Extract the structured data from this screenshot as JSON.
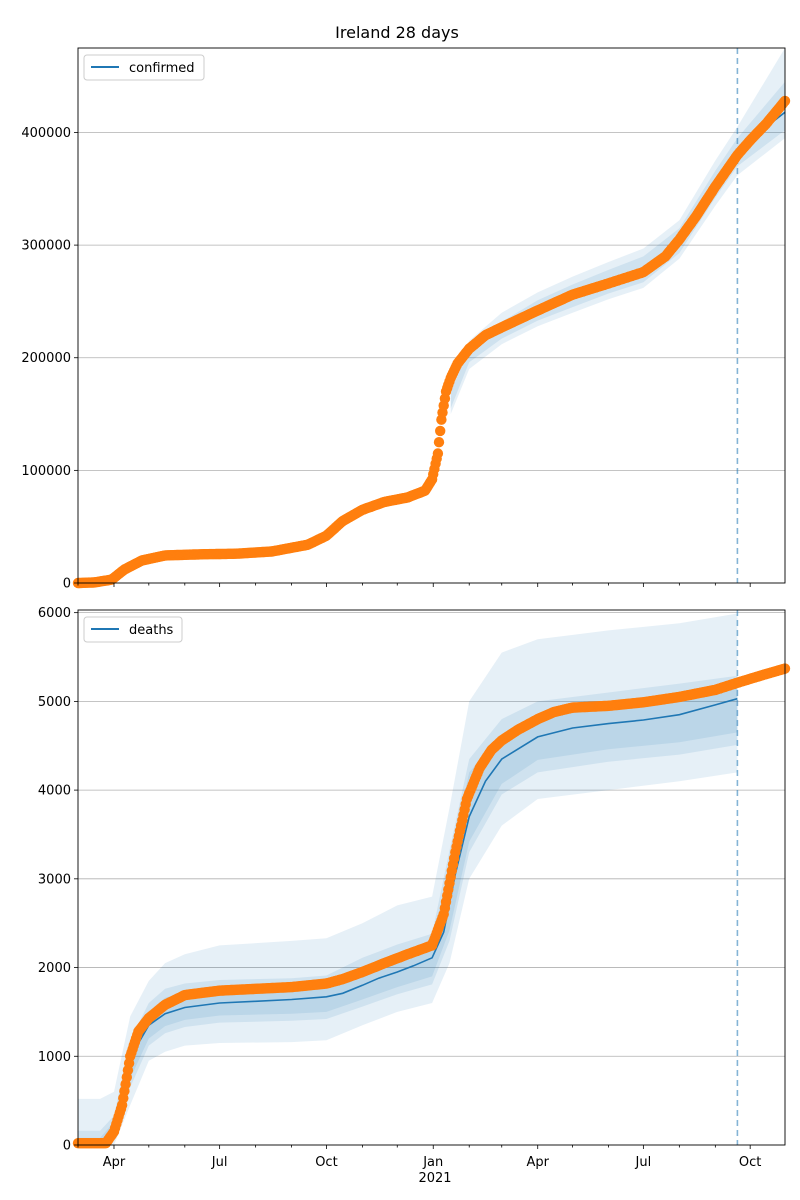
{
  "chart_data": [
    {
      "type": "line",
      "title": "Ireland 28 days",
      "legend": {
        "label": "confirmed",
        "placement": "top-left"
      },
      "xlim": [
        "2020-03-01",
        "2021-10-31"
      ],
      "ylim": [
        0,
        475000
      ],
      "yticks": [
        0,
        100000,
        200000,
        300000,
        400000
      ],
      "ytick_labels": [
        "0",
        "100000",
        "200000",
        "300000",
        "400000"
      ],
      "xticks": [],
      "grid": "y",
      "forecast_date": "2021-09-20",
      "colors": {
        "model": "#1f77b4",
        "observed": "#ff7f0e",
        "band": "#1f77b4"
      },
      "model_series": {
        "x": [
          "2021-09-20",
          "2021-10-31"
        ],
        "y": [
          385000,
          418000
        ]
      },
      "bands": [
        {
          "x": [
            "2021-01-16",
            "2021-02-01",
            "2021-03-01",
            "2021-04-01",
            "2021-05-01",
            "2021-06-01",
            "2021-07-01",
            "2021-08-01",
            "2021-09-01",
            "2021-09-20",
            "2021-10-31"
          ],
          "lower": [
            150000,
            190000,
            212000,
            228000,
            240000,
            252000,
            262000,
            288000,
            335000,
            362000,
            395000
          ],
          "upper": [
            175000,
            215000,
            240000,
            258000,
            272000,
            285000,
            297000,
            322000,
            375000,
            405000,
            475000
          ]
        },
        {
          "x": [
            "2021-01-16",
            "2021-02-01",
            "2021-03-01",
            "2021-04-01",
            "2021-05-01",
            "2021-06-01",
            "2021-07-01",
            "2021-08-01",
            "2021-09-01",
            "2021-09-20",
            "2021-10-31"
          ],
          "lower": [
            155000,
            196000,
            217000,
            233000,
            245000,
            257000,
            267000,
            293000,
            342000,
            370000,
            402000
          ],
          "upper": [
            170000,
            208000,
            232000,
            251000,
            265000,
            278000,
            290000,
            315000,
            366000,
            395000,
            445000
          ]
        }
      ],
      "observed": {
        "x": [
          "2020-03-01",
          "2020-03-15",
          "2020-03-30",
          "2020-04-10",
          "2020-04-25",
          "2020-05-15",
          "2020-06-15",
          "2020-07-15",
          "2020-08-15",
          "2020-09-15",
          "2020-10-01",
          "2020-10-15",
          "2020-11-01",
          "2020-11-20",
          "2020-12-10",
          "2020-12-25",
          "2020-12-31",
          "2021-01-05",
          "2021-01-08",
          "2021-01-12",
          "2021-01-16",
          "2021-01-22",
          "2021-02-01",
          "2021-02-15",
          "2021-03-01",
          "2021-04-01",
          "2021-05-01",
          "2021-06-01",
          "2021-07-01",
          "2021-07-20",
          "2021-08-01",
          "2021-08-15",
          "2021-09-01",
          "2021-09-20",
          "2021-10-01",
          "2021-10-15",
          "2021-10-31"
        ],
        "y": [
          0,
          500,
          3000,
          12000,
          20000,
          24500,
          25500,
          26000,
          28000,
          34000,
          42000,
          55000,
          65000,
          72000,
          76000,
          82000,
          92000,
          115000,
          145000,
          170000,
          182000,
          195000,
          208000,
          220000,
          227000,
          242000,
          256000,
          266000,
          276000,
          290000,
          305000,
          325000,
          352000,
          380000,
          393000,
          408000,
          428000
        ]
      }
    },
    {
      "type": "line",
      "title": "",
      "legend": {
        "label": "deaths",
        "placement": "top-left"
      },
      "xlim": [
        "2020-03-01",
        "2021-10-31"
      ],
      "ylim": [
        0,
        6030
      ],
      "yticks": [
        0,
        1000,
        2000,
        3000,
        4000,
        5000,
        6000
      ],
      "ytick_labels": [
        "0",
        "1000",
        "2000",
        "3000",
        "4000",
        "5000",
        "6000"
      ],
      "xticks": [
        {
          "date": "2020-04-01",
          "label": "Apr"
        },
        {
          "date": "2020-07-01",
          "label": "Jul"
        },
        {
          "date": "2020-10-01",
          "label": "Oct"
        },
        {
          "date": "2021-01-01",
          "label": "Jan"
        },
        {
          "date": "2021-04-01",
          "label": "Apr"
        },
        {
          "date": "2021-07-01",
          "label": "Jul"
        },
        {
          "date": "2021-10-01",
          "label": "Oct"
        }
      ],
      "xlabel_year": "2021",
      "grid": "y",
      "forecast_date": "2021-09-20",
      "colors": {
        "model": "#1f77b4",
        "observed": "#ff7f0e",
        "band": "#1f77b4"
      },
      "model_series": {
        "x": [
          "2020-03-01",
          "2020-03-25",
          "2020-04-01",
          "2020-04-10",
          "2020-04-20",
          "2020-05-01",
          "2020-05-15",
          "2020-06-01",
          "2020-07-01",
          "2020-08-01",
          "2020-09-01",
          "2020-10-01",
          "2020-10-15",
          "2020-11-01",
          "2020-11-15",
          "2020-12-01",
          "2020-12-15",
          "2020-12-31",
          "2021-01-10",
          "2021-01-20",
          "2021-02-01",
          "2021-02-15",
          "2021-03-01",
          "2021-04-01",
          "2021-05-01",
          "2021-06-01",
          "2021-07-01",
          "2021-08-01",
          "2021-09-01",
          "2021-09-20"
        ],
        "y": [
          0,
          20,
          200,
          700,
          1100,
          1350,
          1480,
          1550,
          1600,
          1620,
          1640,
          1670,
          1710,
          1800,
          1880,
          1950,
          2020,
          2110,
          2400,
          3050,
          3700,
          4100,
          4350,
          4600,
          4700,
          4750,
          4790,
          4850,
          4960,
          5030
        ]
      },
      "bands": [
        {
          "x": [
            "2020-03-01",
            "2020-03-20",
            "2020-04-01",
            "2020-04-15",
            "2020-05-01",
            "2020-05-15",
            "2020-06-01",
            "2020-07-01",
            "2020-09-01",
            "2020-10-01",
            "2020-11-01",
            "2020-12-01",
            "2020-12-31",
            "2021-01-15",
            "2021-02-01",
            "2021-03-01",
            "2021-04-01",
            "2021-06-01",
            "2021-08-01",
            "2021-09-20"
          ],
          "lower": [
            0,
            0,
            0,
            450,
            950,
            1050,
            1120,
            1150,
            1160,
            1180,
            1350,
            1500,
            1600,
            2050,
            3000,
            3600,
            3900,
            4000,
            4100,
            4200
          ],
          "upper": [
            520,
            520,
            600,
            1450,
            1850,
            2050,
            2150,
            2250,
            2300,
            2330,
            2500,
            2700,
            2800,
            3800,
            5000,
            5550,
            5700,
            5800,
            5880,
            5990
          ]
        },
        {
          "x": [
            "2020-03-01",
            "2020-03-20",
            "2020-04-01",
            "2020-04-15",
            "2020-05-01",
            "2020-05-15",
            "2020-06-01",
            "2020-07-01",
            "2020-09-01",
            "2020-10-01",
            "2020-11-01",
            "2020-12-01",
            "2020-12-31",
            "2021-01-15",
            "2021-02-01",
            "2021-03-01",
            "2021-04-01",
            "2021-06-01",
            "2021-08-01",
            "2021-09-20"
          ],
          "lower": [
            0,
            0,
            60,
            650,
            1120,
            1260,
            1330,
            1380,
            1400,
            1420,
            1560,
            1700,
            1810,
            2300,
            3300,
            3950,
            4200,
            4320,
            4400,
            4510
          ],
          "upper": [
            160,
            160,
            330,
            1180,
            1600,
            1760,
            1820,
            1860,
            1880,
            1910,
            2110,
            2260,
            2380,
            3320,
            4350,
            4800,
            5000,
            5100,
            5200,
            5290
          ]
        },
        {
          "x": [
            "2020-03-01",
            "2020-03-20",
            "2020-04-01",
            "2020-04-15",
            "2020-05-01",
            "2020-05-15",
            "2020-06-01",
            "2020-07-01",
            "2020-09-01",
            "2020-10-01",
            "2020-11-01",
            "2020-12-01",
            "2020-12-31",
            "2021-01-15",
            "2021-02-01",
            "2021-03-01",
            "2021-04-01",
            "2021-06-01",
            "2021-08-01",
            "2021-09-20"
          ],
          "lower": [
            0,
            0,
            120,
            750,
            1200,
            1340,
            1410,
            1460,
            1480,
            1500,
            1640,
            1780,
            1900,
            2420,
            3420,
            4070,
            4340,
            4460,
            4540,
            4650
          ],
          "upper": [
            80,
            80,
            260,
            1080,
            1500,
            1660,
            1720,
            1760,
            1780,
            1810,
            1990,
            2140,
            2260,
            3180,
            4200,
            4620,
            4850,
            4950,
            5040,
            5160
          ]
        }
      ],
      "observed": {
        "x": [
          "2020-03-01",
          "2020-03-25",
          "2020-04-01",
          "2020-04-08",
          "2020-04-15",
          "2020-04-22",
          "2020-05-01",
          "2020-05-15",
          "2020-06-01",
          "2020-07-01",
          "2020-08-01",
          "2020-09-01",
          "2020-10-01",
          "2020-10-15",
          "2020-11-01",
          "2020-11-20",
          "2020-12-10",
          "2020-12-31",
          "2021-01-10",
          "2021-01-20",
          "2021-01-30",
          "2021-02-10",
          "2021-02-20",
          "2021-03-01",
          "2021-03-15",
          "2021-04-01",
          "2021-04-15",
          "2021-05-01",
          "2021-06-01",
          "2021-07-01",
          "2021-08-01",
          "2021-09-01",
          "2021-09-20",
          "2021-10-10",
          "2021-10-31"
        ],
        "y": [
          20,
          20,
          150,
          450,
          1000,
          1280,
          1430,
          1580,
          1690,
          1740,
          1760,
          1780,
          1820,
          1870,
          1950,
          2050,
          2150,
          2250,
          2600,
          3300,
          3900,
          4250,
          4450,
          4560,
          4680,
          4800,
          4880,
          4930,
          4950,
          4990,
          5050,
          5130,
          5210,
          5290,
          5370
        ]
      }
    }
  ]
}
